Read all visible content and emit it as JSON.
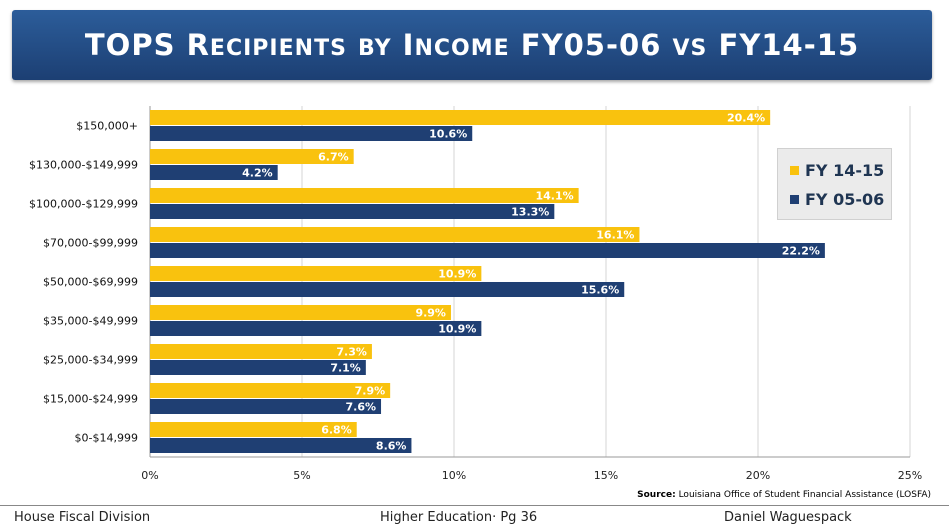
{
  "header": {
    "title": "TOPS Recipients by Income FY05-06 vs FY14-15"
  },
  "colors": {
    "title_bg": "#1f4a80",
    "fy1415": "#f9c20e",
    "fy0506": "#1f3f73"
  },
  "chart_data": {
    "type": "bar",
    "orientation": "horizontal",
    "categories": [
      "$150,000+",
      "$130,000-$149,999",
      "$100,000-$129,999",
      "$70,000-$99,999",
      "$50,000-$69,999",
      "$35,000-$49,999",
      "$25,000-$34,999",
      "$15,000-$24,999",
      "$0-$14,999"
    ],
    "series": [
      {
        "name": "FY 14-15",
        "values": [
          20.4,
          6.7,
          14.1,
          16.1,
          10.9,
          9.9,
          7.3,
          7.9,
          6.8
        ],
        "labels": [
          "20.4%",
          "6.7%",
          "14.1%",
          "16.1%",
          "10.9%",
          "9.9%",
          "7.3%",
          "7.9%",
          "6.8%"
        ]
      },
      {
        "name": "FY 05-06",
        "values": [
          10.6,
          4.2,
          13.3,
          22.2,
          15.6,
          10.9,
          7.1,
          7.6,
          8.6
        ],
        "labels": [
          "10.6%",
          "4.2%",
          "13.3%",
          "22.2%",
          "15.6%",
          "10.9%",
          "7.1%",
          "7.6%",
          "8.6%"
        ]
      }
    ],
    "xlim": [
      0,
      25
    ],
    "ticks": [
      0,
      5,
      10,
      15,
      20,
      25
    ],
    "tick_labels": [
      "0%",
      "5%",
      "10%",
      "15%",
      "20%",
      "25%"
    ],
    "grid": true,
    "legend_position": "top-right"
  },
  "source": {
    "label": "Source:",
    "text": "Louisiana Office of Student Financial Assistance (LOSFA)"
  },
  "footer": {
    "left": "House Fiscal Division",
    "center": "Higher Education· Pg 36",
    "right": "Daniel Waguespack"
  }
}
